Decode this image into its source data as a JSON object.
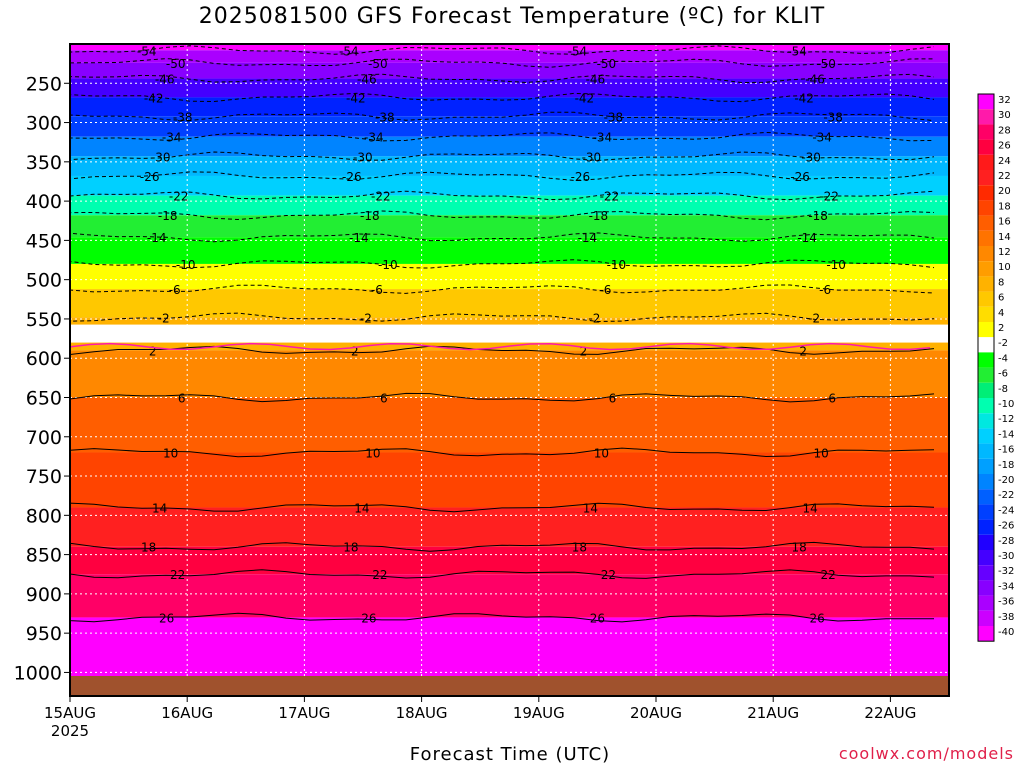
{
  "chart_data": {
    "type": "heatmap",
    "title": "2025081500 GFS Forecast Temperature (ºC) for KLIT",
    "xlabel": "Forecast Time (UTC)",
    "ylabel": "",
    "credit": "coolwx.com/models",
    "x_ticks": [
      {
        "label": "15AUG",
        "sub": "2025",
        "day": 15
      },
      {
        "label": "16AUG",
        "day": 16
      },
      {
        "label": "17AUG",
        "day": 17
      },
      {
        "label": "18AUG",
        "day": 18
      },
      {
        "label": "19AUG",
        "day": 19
      },
      {
        "label": "20AUG",
        "day": 20
      },
      {
        "label": "21AUG",
        "day": 21
      },
      {
        "label": "22AUG",
        "day": 22
      }
    ],
    "x_range_days": [
      15,
      22.5
    ],
    "y_ticks": [
      250,
      300,
      350,
      400,
      450,
      500,
      550,
      600,
      650,
      700,
      750,
      800,
      850,
      900,
      950,
      1000
    ],
    "y_range_hpa": [
      200,
      1030
    ],
    "colorbar": {
      "labels": [
        "32",
        "30",
        "28",
        "26",
        "24",
        "22",
        "20",
        "18",
        "16",
        "14",
        "12",
        "10",
        "8",
        "6",
        "4",
        "2",
        "-2",
        "-4",
        "-6",
        "-8",
        "-10",
        "-12",
        "-14",
        "-16",
        "-18",
        "-20",
        "-22",
        "-24",
        "-26",
        "-28",
        "-30",
        "-32",
        "-34",
        "-36",
        "-38",
        "-40"
      ],
      "colors": [
        "#ff00ff",
        "#ff1aaa",
        "#ff0066",
        "#ff0040",
        "#ff1a1a",
        "#ff2020",
        "#ff2a00",
        "#ff4400",
        "#ff5e00",
        "#ff7300",
        "#ff8800",
        "#ff9d00",
        "#ffb200",
        "#ffc800",
        "#ffdd00",
        "#ffff00",
        "#ffffff",
        "#00ff00",
        "#22ee33",
        "#00ee77",
        "#00ffb0",
        "#00e8e0",
        "#00d0ff",
        "#00b8ff",
        "#00a0ff",
        "#0084ff",
        "#0060ff",
        "#0040ff",
        "#0022ff",
        "#2000ff",
        "#4400ff",
        "#6600ff",
        "#8800ff",
        "#aa00ff",
        "#cc00ff",
        "#ff00ff"
      ]
    },
    "contours": [
      {
        "value": -54,
        "pressure": 208
      },
      {
        "value": -50,
        "pressure": 224
      },
      {
        "value": -46,
        "pressure": 244
      },
      {
        "value": -42,
        "pressure": 268
      },
      {
        "value": -38,
        "pressure": 292
      },
      {
        "value": -34,
        "pressure": 318
      },
      {
        "value": -30,
        "pressure": 343
      },
      {
        "value": -26,
        "pressure": 368
      },
      {
        "value": -22,
        "pressure": 393
      },
      {
        "value": -18,
        "pressure": 418
      },
      {
        "value": -14,
        "pressure": 446
      },
      {
        "value": -10,
        "pressure": 480
      },
      {
        "value": -6,
        "pressure": 512
      },
      {
        "value": -2,
        "pressure": 548
      },
      {
        "value": 2,
        "pressure": 590
      },
      {
        "value": 6,
        "pressure": 650
      },
      {
        "value": 10,
        "pressure": 720
      },
      {
        "value": 14,
        "pressure": 790
      },
      {
        "value": 18,
        "pressure": 840
      },
      {
        "value": 22,
        "pressure": 875
      },
      {
        "value": 26,
        "pressure": 930
      }
    ],
    "freezing_level_hpa": 575,
    "grid": true
  }
}
